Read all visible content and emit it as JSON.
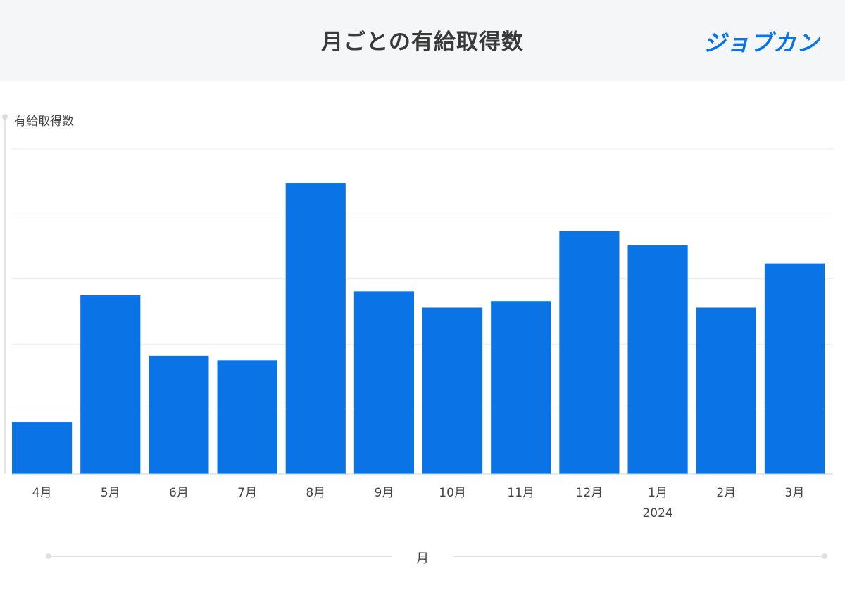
{
  "header": {
    "title": "月ごとの有給取得数",
    "logo_text": "ジョブカン"
  },
  "colors": {
    "bar": "#0a74e6",
    "header_bg": "#f5f6f8",
    "grid": "#ececec",
    "logo": "#0a74e6"
  },
  "chart_data": {
    "type": "bar",
    "title": "月ごとの有給取得数",
    "ylabel": "有給取得数",
    "xlabel": "月",
    "categories": [
      "4月",
      "5月",
      "6月",
      "7月",
      "8月",
      "9月",
      "10月",
      "11月",
      "12月",
      "1月",
      "2月",
      "3月"
    ],
    "year_label": {
      "category": "1月",
      "text": "2024"
    },
    "values": [
      8,
      27.5,
      18.2,
      17.5,
      44.8,
      28.1,
      25.6,
      26.6,
      37.4,
      35.2,
      25.6,
      32.4
    ],
    "ylim": [
      0,
      50
    ],
    "gridlines": [
      0,
      10,
      20,
      30,
      40,
      50
    ],
    "grid": true,
    "legend": "none"
  }
}
